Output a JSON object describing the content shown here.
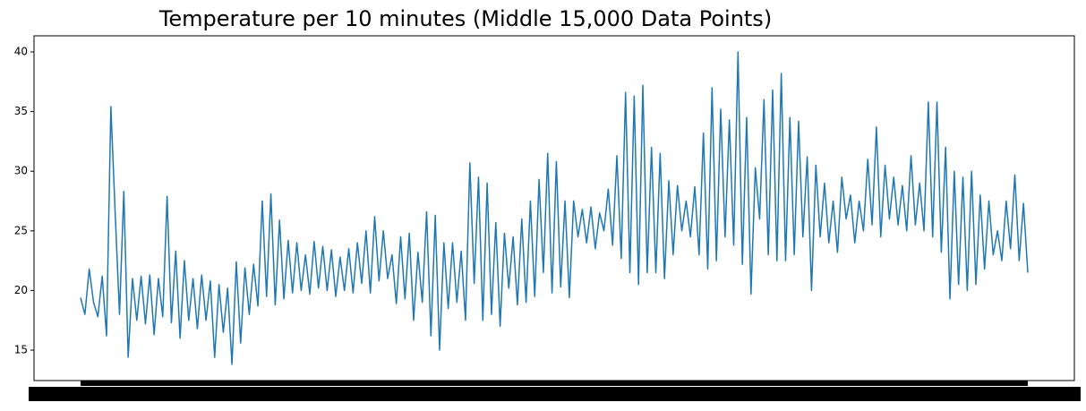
{
  "chart_data": {
    "type": "line",
    "title": "Temperature per 10 minutes (Middle 15,000 Data Points)",
    "color": "#1f77b4",
    "ylim": [
      12.45,
      41.35
    ],
    "yticks": [
      15,
      20,
      25,
      30,
      35,
      40
    ],
    "grid": false,
    "values": [
      19.4,
      18.0,
      21.8,
      19,
      17.8,
      21.2,
      16.2,
      35.4,
      26.5,
      18,
      28.3,
      14.4,
      21,
      17.5,
      21.2,
      17.2,
      21.3,
      16.3,
      21,
      17.8,
      27.9,
      17.3,
      23.3,
      16,
      22.5,
      17.5,
      21,
      16.8,
      21.3,
      17.5,
      20.8,
      14.4,
      20.5,
      16.5,
      20.2,
      13.8,
      22.4,
      15.6,
      21.9,
      18,
      22.2,
      18.7,
      27.5,
      19.5,
      28.1,
      18.8,
      25.9,
      19.3,
      24.2,
      19.8,
      24,
      20,
      23,
      19.7,
      24.1,
      20.2,
      23.7,
      20,
      23.4,
      19.5,
      22.8,
      20,
      23.5,
      19.8,
      24,
      20.6,
      25,
      19.8,
      26.2,
      20.8,
      25,
      21,
      23,
      18.9,
      24.5,
      19.3,
      24.8,
      17.5,
      23.2,
      19,
      26.6,
      16.2,
      26.3,
      15,
      24,
      18.5,
      24,
      19,
      23.3,
      17.5,
      30.7,
      20.6,
      29.5,
      17.5,
      29,
      18,
      25.7,
      17,
      24.8,
      20.2,
      24.5,
      18.8,
      26,
      19,
      27.5,
      19.5,
      29.3,
      21.5,
      31.5,
      19.8,
      30.8,
      20.3,
      27.5,
      19.4,
      27.5,
      24.5,
      26.8,
      24,
      27,
      23.5,
      26.5,
      25,
      28.5,
      23.8,
      31.3,
      22.7,
      36.6,
      21.5,
      36.3,
      20.5,
      37.2,
      21.5,
      32,
      21.5,
      31.5,
      21,
      29.2,
      23,
      28.8,
      25,
      27.5,
      24.5,
      28.7,
      23,
      33.2,
      21.8,
      37,
      22.5,
      35.2,
      24.5,
      34.3,
      23.8,
      40,
      22.2,
      34.5,
      19.7,
      30.3,
      26,
      36,
      23,
      36.8,
      22.5,
      38.2,
      22.5,
      34.5,
      23,
      34.2,
      24.5,
      31.2,
      20,
      30.5,
      24.5,
      29,
      24,
      27.5,
      23.2,
      29.5,
      26,
      28,
      24,
      27.5,
      25,
      31,
      25.5,
      33.7,
      24.5,
      30.5,
      26,
      29.5,
      25.5,
      28.8,
      25,
      31.3,
      25.5,
      29,
      25,
      35.8,
      24.5,
      35.8,
      23.2,
      32,
      19.3,
      30,
      20.5,
      29.5,
      20,
      30,
      20.5,
      28,
      21.8,
      27.5,
      23,
      25,
      22.5,
      27.5,
      23.5,
      29.7,
      22.5,
      27.3,
      21.5
    ]
  }
}
